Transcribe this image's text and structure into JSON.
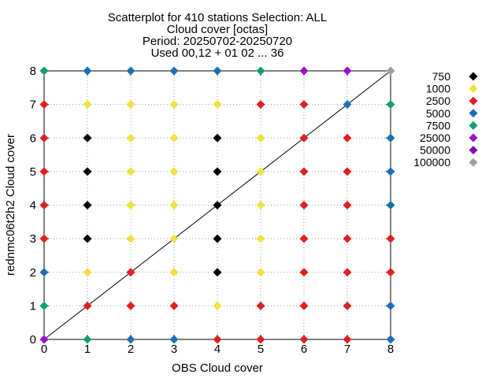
{
  "chart_data": {
    "type": "scatter",
    "title_lines": [
      "Scatterplot for  410 stations Selection: ALL",
      "Cloud cover [octas]",
      "Period: 20250702-20250720",
      "Used 00,12 + 01 02 ... 36"
    ],
    "xlabel": "OBS Cloud cover",
    "ylabel": "rednmc06t2h2 Cloud cover",
    "xlim": [
      0,
      8
    ],
    "ylim": [
      0,
      8
    ],
    "xticks": [
      "0",
      "1",
      "2",
      "3",
      "4",
      "5",
      "6",
      "7",
      "8"
    ],
    "yticks": [
      "0",
      "1",
      "2",
      "3",
      "4",
      "5",
      "6",
      "7",
      "8"
    ],
    "grid": true,
    "legend_position": "right",
    "diagonal_line": true,
    "levels": [
      {
        "label": "750",
        "color": "#000000"
      },
      {
        "label": "1000",
        "color": "#f0e040"
      },
      {
        "label": "2500",
        "color": "#e02020"
      },
      {
        "label": "5000",
        "color": "#1a6fb5"
      },
      {
        "label": "7500",
        "color": "#10a070"
      },
      {
        "label": "25000",
        "color": "#9a10d0"
      },
      {
        "label": "50000",
        "color": "#8010c0"
      },
      {
        "label": "100000",
        "color": "#a0a0a0"
      }
    ],
    "points": [
      {
        "x": 0,
        "y": 8,
        "level": 4
      },
      {
        "x": 1,
        "y": 8,
        "level": 3
      },
      {
        "x": 2,
        "y": 8,
        "level": 3
      },
      {
        "x": 3,
        "y": 8,
        "level": 3
      },
      {
        "x": 4,
        "y": 8,
        "level": 3
      },
      {
        "x": 5,
        "y": 8,
        "level": 4
      },
      {
        "x": 6,
        "y": 8,
        "level": 5
      },
      {
        "x": 7,
        "y": 8,
        "level": 5
      },
      {
        "x": 8,
        "y": 8,
        "level": 7
      },
      {
        "x": 0,
        "y": 7,
        "level": 2
      },
      {
        "x": 1,
        "y": 7,
        "level": 1
      },
      {
        "x": 2,
        "y": 7,
        "level": 1
      },
      {
        "x": 3,
        "y": 7,
        "level": 1
      },
      {
        "x": 4,
        "y": 7,
        "level": 1
      },
      {
        "x": 5,
        "y": 7,
        "level": 2
      },
      {
        "x": 6,
        "y": 7,
        "level": 2
      },
      {
        "x": 7,
        "y": 7,
        "level": 3
      },
      {
        "x": 8,
        "y": 7,
        "level": 4
      },
      {
        "x": 0,
        "y": 6,
        "level": 2
      },
      {
        "x": 1,
        "y": 6,
        "level": 0
      },
      {
        "x": 2,
        "y": 6,
        "level": 1
      },
      {
        "x": 3,
        "y": 6,
        "level": 1
      },
      {
        "x": 4,
        "y": 6,
        "level": 0
      },
      {
        "x": 5,
        "y": 6,
        "level": 1
      },
      {
        "x": 6,
        "y": 6,
        "level": 2
      },
      {
        "x": 7,
        "y": 6,
        "level": 2
      },
      {
        "x": 8,
        "y": 6,
        "level": 3
      },
      {
        "x": 0,
        "y": 5,
        "level": 2
      },
      {
        "x": 1,
        "y": 5,
        "level": 0
      },
      {
        "x": 2,
        "y": 5,
        "level": 1
      },
      {
        "x": 3,
        "y": 5,
        "level": 1
      },
      {
        "x": 4,
        "y": 5,
        "level": 0
      },
      {
        "x": 5,
        "y": 5,
        "level": 1
      },
      {
        "x": 6,
        "y": 5,
        "level": 2
      },
      {
        "x": 7,
        "y": 5,
        "level": 2
      },
      {
        "x": 8,
        "y": 5,
        "level": 3
      },
      {
        "x": 0,
        "y": 4,
        "level": 2
      },
      {
        "x": 1,
        "y": 4,
        "level": 0
      },
      {
        "x": 2,
        "y": 4,
        "level": 1
      },
      {
        "x": 3,
        "y": 4,
        "level": 1
      },
      {
        "x": 4,
        "y": 4,
        "level": 0
      },
      {
        "x": 5,
        "y": 4,
        "level": 1
      },
      {
        "x": 6,
        "y": 4,
        "level": 2
      },
      {
        "x": 7,
        "y": 4,
        "level": 2
      },
      {
        "x": 8,
        "y": 4,
        "level": 3
      },
      {
        "x": 0,
        "y": 3,
        "level": 2
      },
      {
        "x": 1,
        "y": 3,
        "level": 0
      },
      {
        "x": 2,
        "y": 3,
        "level": 1
      },
      {
        "x": 3,
        "y": 3,
        "level": 1
      },
      {
        "x": 4,
        "y": 3,
        "level": 0
      },
      {
        "x": 5,
        "y": 3,
        "level": 1
      },
      {
        "x": 6,
        "y": 3,
        "level": 2
      },
      {
        "x": 7,
        "y": 3,
        "level": 2
      },
      {
        "x": 8,
        "y": 3,
        "level": 2
      },
      {
        "x": 0,
        "y": 2,
        "level": 3
      },
      {
        "x": 1,
        "y": 2,
        "level": 1
      },
      {
        "x": 2,
        "y": 2,
        "level": 2
      },
      {
        "x": 3,
        "y": 2,
        "level": 1
      },
      {
        "x": 4,
        "y": 2,
        "level": 0
      },
      {
        "x": 5,
        "y": 2,
        "level": 1
      },
      {
        "x": 6,
        "y": 2,
        "level": 2
      },
      {
        "x": 7,
        "y": 2,
        "level": 2
      },
      {
        "x": 8,
        "y": 2,
        "level": 2
      },
      {
        "x": 0,
        "y": 1,
        "level": 4
      },
      {
        "x": 1,
        "y": 1,
        "level": 2
      },
      {
        "x": 2,
        "y": 1,
        "level": 2
      },
      {
        "x": 3,
        "y": 1,
        "level": 2
      },
      {
        "x": 4,
        "y": 1,
        "level": 1
      },
      {
        "x": 5,
        "y": 1,
        "level": 2
      },
      {
        "x": 6,
        "y": 1,
        "level": 2
      },
      {
        "x": 7,
        "y": 1,
        "level": 2
      },
      {
        "x": 8,
        "y": 1,
        "level": 3
      },
      {
        "x": 0,
        "y": 0,
        "level": 5
      },
      {
        "x": 1,
        "y": 0,
        "level": 4
      },
      {
        "x": 2,
        "y": 0,
        "level": 3
      },
      {
        "x": 3,
        "y": 0,
        "level": 3
      },
      {
        "x": 4,
        "y": 0,
        "level": 2
      },
      {
        "x": 5,
        "y": 0,
        "level": 2
      },
      {
        "x": 6,
        "y": 0,
        "level": 2
      },
      {
        "x": 7,
        "y": 0,
        "level": 2
      },
      {
        "x": 8,
        "y": 0,
        "level": 3
      }
    ]
  }
}
